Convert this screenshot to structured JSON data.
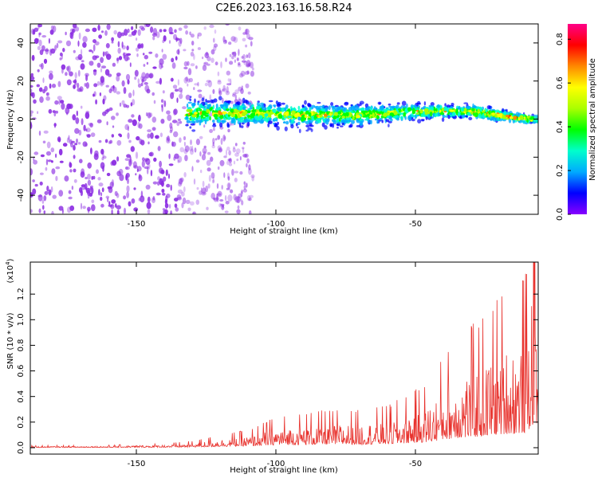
{
  "title": "C2E6.2023.163.16.58.R24",
  "colors": {
    "snr_line": "#e8322d",
    "spectrogram_base": "#8a2be2",
    "colorbar_stops": [
      "#8800ff",
      "#0000ff",
      "#00aaff",
      "#00ffcc",
      "#00ff00",
      "#aaff00",
      "#ffff00",
      "#ff8800",
      "#ff0000",
      "#ff0088"
    ]
  },
  "chart_data": [
    {
      "type": "heatmap",
      "title": "C2E6.2023.163.16.58.R24",
      "xlabel": "Height of straight line (km)",
      "ylabel": "Frequency (Hz)",
      "xlim": [
        -188,
        -6
      ],
      "ylim": [
        -50,
        50
      ],
      "xticks": [
        -150,
        -100,
        -50
      ],
      "yticks": [
        -40,
        -20,
        0,
        20,
        40
      ],
      "colorbar": {
        "label": "Normalized spectral amplitude",
        "range": [
          0.0,
          0.87
        ],
        "ticks": [
          0.0,
          0.2,
          0.4,
          0.6,
          0.8
        ],
        "colormap": "rainbow"
      },
      "description_values": {
        "noise_region_x": [
          -188,
          -120
        ],
        "signal_band_center_hz": [
          [
            -130,
            3
          ],
          [
            -110,
            3
          ],
          [
            -90,
            2
          ],
          [
            -70,
            2
          ],
          [
            -50,
            4
          ],
          [
            -30,
            4
          ],
          [
            -20,
            2
          ],
          [
            -10,
            0
          ],
          [
            -6,
            0
          ]
        ],
        "signal_band_halfwidth_hz": [
          [
            -130,
            10
          ],
          [
            -100,
            9
          ],
          [
            -70,
            8
          ],
          [
            -50,
            6
          ],
          [
            -30,
            5
          ],
          [
            -10,
            3
          ],
          [
            -6,
            2
          ]
        ]
      },
      "grid": false
    },
    {
      "type": "line",
      "xlabel": "Height of straight line (km)",
      "ylabel": "SNR (10 * v/v)",
      "y_multiplier_label": "(x10",
      "y_multiplier_exp": "4",
      "xlim": [
        -188,
        -6
      ],
      "ylim": [
        -0.05,
        1.45
      ],
      "xticks": [
        -150,
        -100,
        -50
      ],
      "yticks": [
        0.0,
        0.2,
        0.4,
        0.6,
        0.8,
        1.0,
        1.2
      ],
      "series": [
        {
          "envelope": [
            [
              -188,
              0.01
            ],
            [
              -160,
              0.012
            ],
            [
              -140,
              0.02
            ],
            [
              -130,
              0.03
            ],
            [
              -120,
              0.06
            ],
            [
              -110,
              0.08
            ],
            [
              -100,
              0.14
            ],
            [
              -90,
              0.16
            ],
            [
              -80,
              0.17
            ],
            [
              -70,
              0.17
            ],
            [
              -60,
              0.19
            ],
            [
              -50,
              0.26
            ],
            [
              -45,
              0.3
            ],
            [
              -40,
              0.42
            ],
            [
              -35,
              0.5
            ],
            [
              -30,
              0.55
            ],
            [
              -25,
              0.6
            ],
            [
              -20,
              0.7
            ],
            [
              -15,
              0.72
            ],
            [
              -10,
              0.8
            ],
            [
              -8,
              1.2
            ],
            [
              -7,
              1.4
            ],
            [
              -6,
              0.9
            ]
          ]
        }
      ],
      "grid": false
    }
  ]
}
